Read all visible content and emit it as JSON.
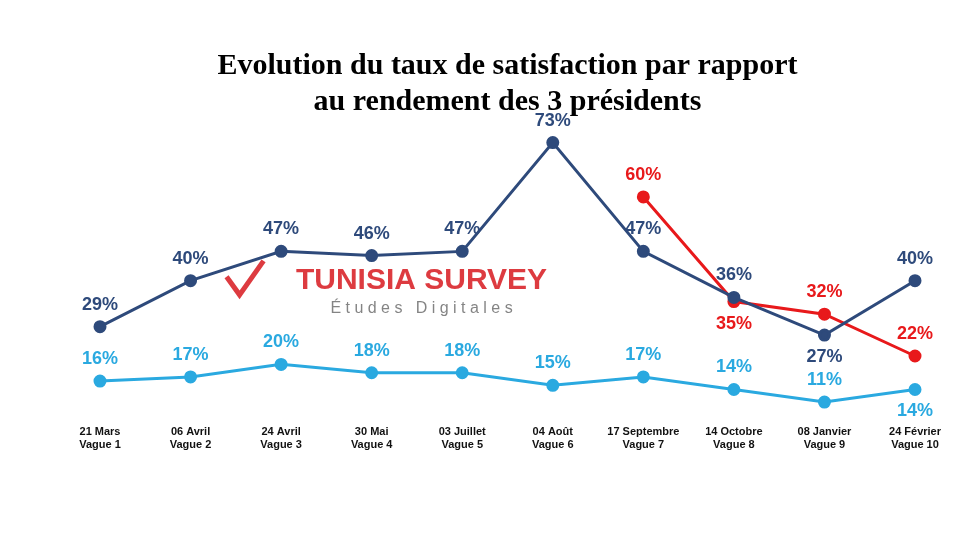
{
  "chart_data": {
    "type": "line",
    "title": [
      "Evolution du taux de satisfaction par rapport",
      "au rendement des 3 présidents"
    ],
    "annotations": [
      "TUNISIA SURVEY",
      "Études Digitales"
    ],
    "categories": [
      [
        "21 Mars",
        "Vague 1"
      ],
      [
        "06 Avril",
        "Vague 2"
      ],
      [
        "24 Avril",
        "Vague 3"
      ],
      [
        "30 Mai",
        "Vague 4"
      ],
      [
        "03 Juillet",
        "Vague 5"
      ],
      [
        "04 Août",
        "Vague 6"
      ],
      [
        "17 Septembre",
        "Vague 7"
      ],
      [
        "14 Octobre",
        "Vague 8"
      ],
      [
        "08 Janvier",
        "Vague 9"
      ],
      [
        "24 Février",
        "Vague 10"
      ]
    ],
    "series": [
      {
        "color": "#2e4a7b",
        "marker": "circle",
        "line_style": "solid",
        "values": [
          29,
          40,
          47,
          46,
          47,
          73,
          47,
          36,
          27,
          40
        ],
        "value_labels": [
          "29%",
          "40%",
          "47%",
          "46%",
          "47%",
          "73%",
          "47%",
          "36%",
          "27%",
          "40%"
        ]
      },
      {
        "color": "#e8191b",
        "marker": "circle",
        "line_style": "solid",
        "values": [
          null,
          null,
          null,
          null,
          null,
          null,
          60,
          35,
          32,
          22
        ],
        "value_labels": [
          null,
          null,
          null,
          null,
          null,
          null,
          "60%",
          "35%",
          "32%",
          "22%"
        ]
      },
      {
        "color": "#2aa9e0",
        "marker": "circle",
        "line_style": "solid",
        "values": [
          16,
          17,
          20,
          18,
          18,
          15,
          17,
          14,
          11,
          14
        ],
        "value_labels": [
          "16%",
          "17%",
          "20%",
          "18%",
          "18%",
          "15%",
          "17%",
          "14%",
          "11%",
          "14%"
        ]
      }
    ],
    "ylim": [
      8,
      76
    ],
    "grid": false,
    "data_labels": true,
    "tick_labels": "x"
  }
}
